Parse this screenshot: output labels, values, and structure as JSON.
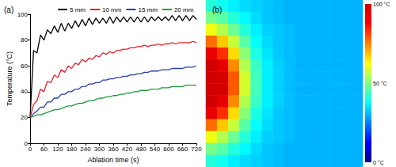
{
  "chart_data": [
    {
      "type": "line",
      "title": "(a)",
      "x_label": "Ablation time (s)",
      "y_label": "Temperature (°C)",
      "x": [
        0,
        15,
        30,
        45,
        60,
        75,
        90,
        105,
        120,
        135,
        150,
        165,
        180,
        195,
        210,
        225,
        240,
        255,
        270,
        285,
        300,
        315,
        330,
        345,
        360,
        375,
        390,
        405,
        420,
        435,
        450,
        465,
        480,
        495,
        510,
        525,
        540,
        555,
        570,
        585,
        600,
        615,
        630,
        645,
        660,
        675,
        690,
        705,
        720
      ],
      "series": [
        {
          "name": "5 mm",
          "color": "#000000",
          "values": [
            20,
            72,
            70,
            84,
            80,
            88,
            85,
            91,
            86,
            93,
            87,
            93,
            89,
            95,
            90,
            96,
            91,
            97,
            92,
            97,
            93,
            97,
            93,
            98,
            93,
            98,
            94,
            98,
            94,
            98,
            94,
            98,
            94,
            98,
            94,
            98,
            95,
            98,
            95,
            98,
            95,
            99,
            95,
            99,
            95,
            99,
            95,
            99,
            96
          ]
        },
        {
          "name": "10 mm",
          "color": "#e8202a",
          "values": [
            20,
            30,
            33,
            42,
            40,
            48,
            47,
            53,
            51,
            57,
            55,
            60,
            58,
            62,
            61,
            65,
            63,
            66,
            65,
            68,
            67,
            70,
            69,
            71,
            70,
            72,
            72,
            73,
            73,
            74,
            74,
            75,
            75,
            76,
            75,
            76,
            76,
            77,
            76,
            77,
            77,
            78,
            77,
            78,
            78,
            78,
            78,
            79,
            78
          ]
        },
        {
          "name": "15 mm",
          "color": "#2a3ea8",
          "values": [
            20,
            23,
            25,
            28,
            28,
            32,
            32,
            35,
            35,
            38,
            38,
            40,
            40,
            42,
            42,
            44,
            44,
            46,
            46,
            47,
            47,
            49,
            49,
            50,
            50,
            51,
            51,
            52,
            52,
            53,
            53,
            54,
            54,
            55,
            55,
            56,
            56,
            56,
            57,
            57,
            57,
            58,
            58,
            58,
            58,
            59,
            59,
            59,
            60
          ]
        },
        {
          "name": "20 mm",
          "color": "#1f9a3a",
          "values": [
            20,
            21,
            22,
            22,
            23,
            24,
            25,
            26,
            26,
            27,
            28,
            29,
            29,
            30,
            31,
            31,
            32,
            33,
            33,
            34,
            35,
            35,
            36,
            36,
            37,
            37,
            38,
            38,
            39,
            39,
            40,
            40,
            41,
            41,
            41,
            42,
            42,
            42,
            43,
            43,
            43,
            44,
            44,
            44,
            44,
            45,
            45,
            45,
            45
          ]
        }
      ],
      "xlim": [
        0,
        720
      ],
      "xticks": [
        0,
        60,
        120,
        180,
        240,
        300,
        360,
        420,
        480,
        540,
        600,
        660,
        720
      ],
      "ylim": [
        0,
        100
      ],
      "yticks": [
        0,
        20,
        40,
        60,
        80,
        100
      ],
      "grid": false,
      "legend": "top"
    },
    {
      "type": "heatmap",
      "title": "(b)",
      "tick_labels": false,
      "cells": [
        [
          41,
          39,
          36,
          34,
          33,
          32,
          31,
          30,
          30,
          30,
          30,
          30,
          30,
          30
        ],
        [
          49,
          46,
          41,
          37,
          34,
          32,
          31,
          30,
          30,
          30,
          30,
          30,
          30,
          30
        ],
        [
          61,
          55,
          48,
          41,
          36,
          33,
          32,
          31,
          30,
          30,
          30,
          30,
          30,
          30
        ],
        [
          77,
          68,
          57,
          46,
          38,
          34,
          32,
          31,
          30,
          30,
          30,
          30,
          30,
          30
        ],
        [
          93,
          83,
          66,
          51,
          40,
          35,
          32,
          31,
          30,
          30,
          30,
          30,
          30,
          30
        ],
        [
          100,
          94,
          74,
          55,
          43,
          36,
          33,
          31,
          30,
          30,
          30,
          30,
          30,
          30
        ],
        [
          100,
          99,
          79,
          58,
          44,
          36,
          33,
          31,
          30,
          30,
          30,
          30,
          30,
          30
        ],
        [
          100,
          99,
          79,
          58,
          44,
          36,
          33,
          31,
          30,
          30,
          30,
          30,
          30,
          30
        ],
        [
          100,
          94,
          74,
          55,
          43,
          36,
          33,
          31,
          30,
          30,
          30,
          30,
          30,
          30
        ],
        [
          93,
          83,
          66,
          51,
          40,
          35,
          32,
          31,
          30,
          30,
          30,
          30,
          30,
          30
        ],
        [
          77,
          68,
          57,
          46,
          38,
          34,
          32,
          31,
          30,
          30,
          30,
          30,
          30,
          30
        ],
        [
          61,
          55,
          48,
          41,
          36,
          33,
          32,
          31,
          30,
          30,
          30,
          30,
          30,
          30
        ],
        [
          49,
          46,
          41,
          37,
          34,
          32,
          31,
          30,
          30,
          30,
          30,
          30,
          30,
          30
        ],
        [
          41,
          39,
          36,
          34,
          33,
          32,
          31,
          30,
          30,
          30,
          30,
          30,
          30,
          30
        ]
      ],
      "colorbar": {
        "range": [
          0,
          100
        ],
        "ticks": [
          {
            "value": 0,
            "label": "0 °C"
          },
          {
            "value": 50,
            "label": "50 °C"
          },
          {
            "value": 100,
            "label": "100 °C"
          }
        ]
      }
    }
  ]
}
